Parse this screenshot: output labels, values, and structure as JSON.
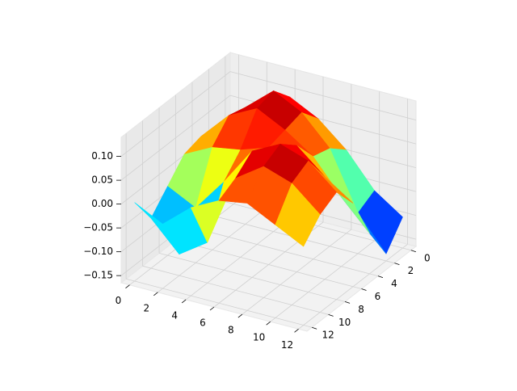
{
  "chart_data": {
    "type": "surface",
    "x": [
      0,
      2,
      4,
      6,
      8,
      10,
      12
    ],
    "y": [
      0,
      2,
      4,
      6,
      8,
      10,
      12
    ],
    "z": [
      [
        0.0,
        0.02,
        0.03,
        0.02,
        -0.02,
        -0.06,
        0.0
      ],
      [
        0.04,
        0.08,
        0.09,
        0.05,
        -0.05,
        -0.12,
        -0.03
      ],
      [
        0.09,
        0.13,
        0.12,
        0.06,
        0.02,
        -0.08,
        0.02
      ],
      [
        0.06,
        0.1,
        0.09,
        0.08,
        0.1,
        0.07,
        0.05
      ],
      [
        0.01,
        0.04,
        0.05,
        0.1,
        0.13,
        0.11,
        0.06
      ],
      [
        -0.06,
        -0.08,
        -0.02,
        0.05,
        0.11,
        0.09,
        0.03
      ],
      [
        -0.1,
        -0.15,
        -0.08,
        0.01,
        0.06,
        0.04,
        0.0
      ]
    ],
    "colormap": "jet",
    "xlim": [
      -0.6,
      12.6
    ],
    "ylim": [
      -0.6,
      12.6
    ],
    "zlim": [
      -0.165,
      0.14
    ],
    "xticks": [
      0,
      2,
      4,
      6,
      8,
      10,
      12
    ],
    "yticks": [
      0,
      2,
      4,
      6,
      8,
      10,
      12
    ],
    "zticks": [
      {
        "value": -0.15,
        "label": "−0.15"
      },
      {
        "value": -0.1,
        "label": "−0.10"
      },
      {
        "value": -0.05,
        "label": "−0.05"
      },
      {
        "value": 0,
        "label": "0.00"
      },
      {
        "value": 0.05,
        "label": "0.05"
      },
      {
        "value": 0.1,
        "label": "0.10"
      }
    ],
    "grid": true
  }
}
